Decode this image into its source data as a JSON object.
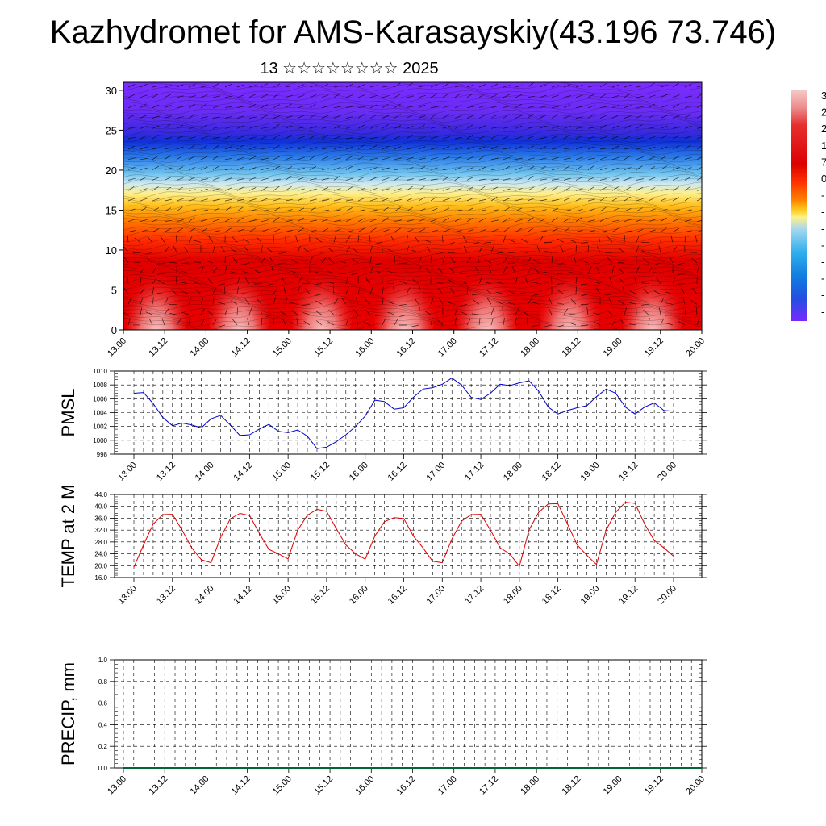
{
  "title": "Kazhydromet for AMS-Karasayskiy(43.196 73.746)",
  "subtitle": "13 ☆☆☆☆☆☆☆☆ 2025",
  "chart_data": [
    {
      "type": "heatmap",
      "xlabel": "",
      "ylabel": "",
      "x_ticks": [
        "13.00",
        "13.12",
        "14.00",
        "14.12",
        "15.00",
        "15.12",
        "16.00",
        "16.12",
        "17.00",
        "17.12",
        "18.00",
        "18.12",
        "19.00",
        "19.12",
        "20.00"
      ],
      "y_ticks": [
        0,
        5,
        10,
        15,
        20,
        25,
        30
      ],
      "ylim": [
        0,
        31
      ],
      "colorbar_labels": [
        "3",
        "2",
        "2",
        "1",
        "7",
        "0",
        "-",
        "-",
        "-",
        "-",
        "-",
        "-",
        "-",
        "-"
      ],
      "colorbar_colors": [
        "#f4c8c8",
        "#ee9090",
        "#e53030",
        "#dd0000",
        "#ff3300",
        "#ff8800",
        "#ffcc22",
        "#fff08a",
        "#a8d8ee",
        "#30b0ee",
        "#1080e0",
        "#2050e0",
        "#4020ee",
        "#7b28ff"
      ],
      "grid": false
    },
    {
      "type": "line",
      "ylabel": "PMSL",
      "x_ticks": [
        "13.00",
        "13.12",
        "14.00",
        "14.12",
        "15.00",
        "15.12",
        "16.00",
        "16.12",
        "17.00",
        "17.12",
        "18.00",
        "18.12",
        "19.00",
        "19.12",
        "20.00"
      ],
      "y_ticks": [
        "998",
        "1000",
        "1002",
        "1004",
        "1006",
        "1008",
        "1010"
      ],
      "ylim": [
        998,
        1010
      ],
      "grid": true,
      "color": "#0000cc",
      "values": [
        1006.8,
        1006.9,
        1005.3,
        1003.3,
        1002.1,
        1002.5,
        1002.2,
        1001.8,
        1003.1,
        1003.6,
        1002.2,
        1000.7,
        1000.8,
        1001.6,
        1002.3,
        1001.3,
        1001.1,
        1001.5,
        1000.6,
        998.8,
        999.0,
        999.8,
        1000.8,
        1002.0,
        1003.5,
        1005.8,
        1005.6,
        1004.5,
        1004.7,
        1006.2,
        1007.4,
        1007.6,
        1008.1,
        1009.0,
        1008.0,
        1006.2,
        1005.9,
        1006.8,
        1008.1,
        1007.9,
        1008.3,
        1008.6,
        1007.1,
        1004.8,
        1003.8,
        1004.3,
        1004.7,
        1005.0,
        1006.3,
        1007.4,
        1006.8,
        1004.8,
        1003.8,
        1004.8,
        1005.4,
        1004.3,
        1004.2
      ]
    },
    {
      "type": "line",
      "ylabel": "TEMP at 2 M",
      "x_ticks": [
        "13.00",
        "13.12",
        "14.00",
        "14.12",
        "15.00",
        "15.12",
        "16.00",
        "16.12",
        "17.00",
        "17.12",
        "18.00",
        "18.12",
        "19.00",
        "19.12",
        "20.00"
      ],
      "y_ticks": [
        "16.0",
        "20.0",
        "24.0",
        "28.0",
        "32.0",
        "36.0",
        "40.0",
        "44.0"
      ],
      "ylim": [
        16,
        44
      ],
      "grid": true,
      "color": "#dd0000",
      "values": [
        19.5,
        27.0,
        34.0,
        37.2,
        37.3,
        32.0,
        26.0,
        22.0,
        21.0,
        29.5,
        35.8,
        37.6,
        36.9,
        31.0,
        25.5,
        24.0,
        22.3,
        32.0,
        37.0,
        39.0,
        38.3,
        32.5,
        27.0,
        24.0,
        22.2,
        30.0,
        34.8,
        36.2,
        35.9,
        30.0,
        26.0,
        21.5,
        21.0,
        29.0,
        35.0,
        37.2,
        37.3,
        32.0,
        26.0,
        24.0,
        19.8,
        32.0,
        38.0,
        40.8,
        40.9,
        34.0,
        27.0,
        23.5,
        20.4,
        32.0,
        38.0,
        41.4,
        41.0,
        34.0,
        28.5,
        26.0,
        23.2
      ]
    },
    {
      "type": "line",
      "ylabel": "PRECIP, mm",
      "x_ticks": [
        "13.00",
        "13.12",
        "14.00",
        "14.12",
        "15.00",
        "15.12",
        "16.00",
        "16.12",
        "17.00",
        "17.12",
        "18.00",
        "18.12",
        "19.00",
        "19.12",
        "20.00"
      ],
      "y_ticks": [
        "0.0",
        "0.2",
        "0.4",
        "0.6",
        "0.8",
        "1.0"
      ],
      "ylim": [
        0,
        1
      ],
      "grid": true,
      "color": "#006633",
      "values": [
        0,
        0,
        0,
        0,
        0,
        0,
        0,
        0,
        0,
        0,
        0,
        0,
        0,
        0,
        0,
        0,
        0,
        0,
        0,
        0,
        0,
        0,
        0,
        0,
        0,
        0,
        0,
        0,
        0,
        0,
        0,
        0,
        0,
        0,
        0,
        0,
        0,
        0,
        0,
        0,
        0,
        0,
        0,
        0,
        0,
        0,
        0,
        0,
        0,
        0,
        0,
        0,
        0,
        0,
        0,
        0,
        0
      ]
    }
  ]
}
